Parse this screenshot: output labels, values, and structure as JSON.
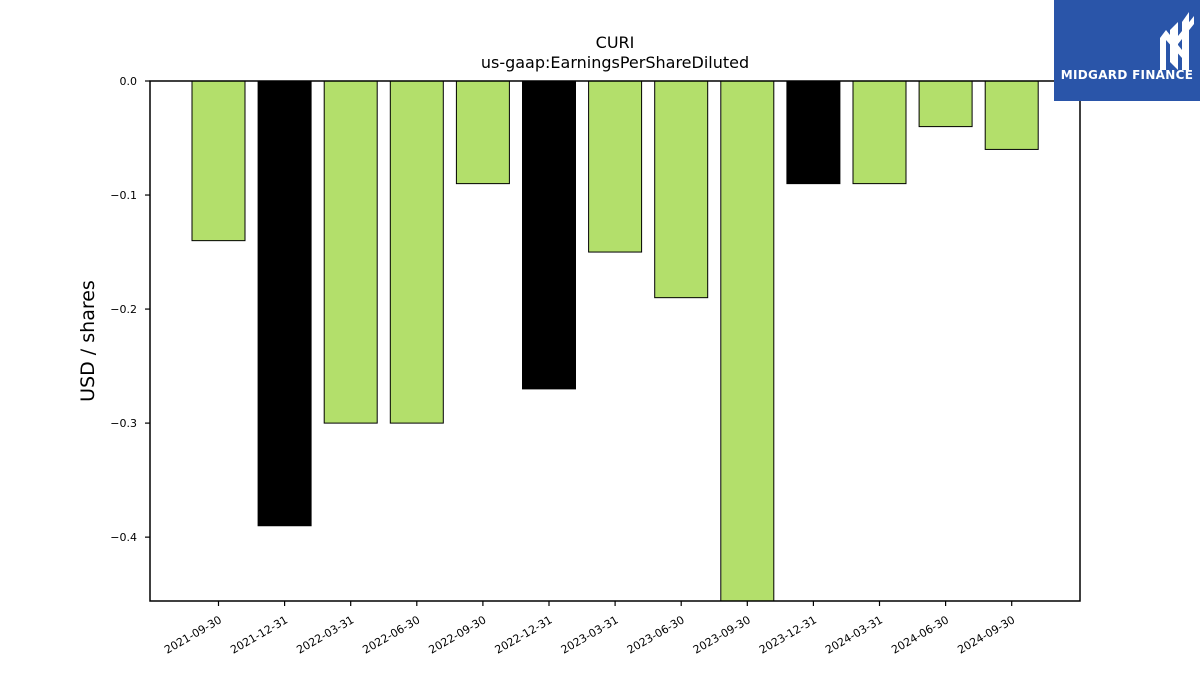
{
  "chart_data": {
    "type": "bar",
    "title": "CURI",
    "subtitle": "us-gaap:EarningsPerShareDiluted",
    "ylabel": "USD / shares",
    "xlabel": "",
    "categories": [
      "2021-09-30",
      "2021-12-31",
      "2022-03-31",
      "2022-06-30",
      "2022-09-30",
      "2022-12-31",
      "2023-03-31",
      "2023-06-30",
      "2023-09-30",
      "2023-12-31",
      "2024-03-31",
      "2024-06-30",
      "2024-09-30"
    ],
    "values": [
      -0.14,
      -0.39,
      -0.3,
      -0.3,
      -0.09,
      -0.27,
      -0.15,
      -0.19,
      -0.47,
      -0.09,
      -0.09,
      -0.04,
      -0.06
    ],
    "bar_colors": [
      "#b3df6b",
      "#000000",
      "#b3df6b",
      "#b3df6b",
      "#b3df6b",
      "#000000",
      "#b3df6b",
      "#b3df6b",
      "#b3df6b",
      "#000000",
      "#b3df6b",
      "#b3df6b",
      "#b3df6b"
    ],
    "ylim": [
      -0.456,
      0.0
    ],
    "yticks": [
      0.0,
      -0.1,
      -0.2,
      -0.3,
      -0.4
    ],
    "ytick_labels": [
      "0.0",
      "−0.1",
      "−0.2",
      "−0.3",
      "−0.4"
    ],
    "grid": false,
    "legend": "none"
  },
  "logo": {
    "text": "MIDGARD FINANCE",
    "background": "#2a55a9",
    "icon": "midgard-logo-icon"
  }
}
